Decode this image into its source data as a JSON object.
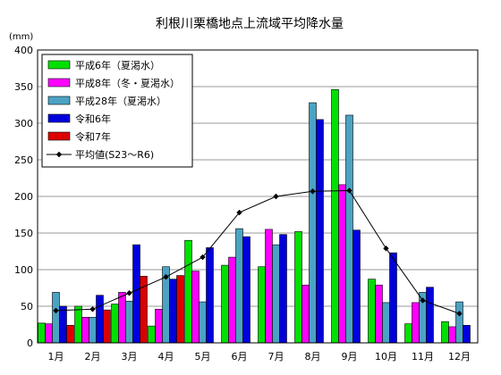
{
  "chart_data": {
    "type": "bar",
    "title": "利根川栗橋地点上流域平均降水量",
    "ylabel": "(mm)",
    "xlabel": "",
    "ylim": [
      0,
      400
    ],
    "yticks": [
      0,
      50,
      100,
      150,
      200,
      250,
      300,
      350,
      400
    ],
    "grid": true,
    "legend_position": "top-left",
    "categories": [
      "1月",
      "2月",
      "3月",
      "4月",
      "5月",
      "6月",
      "7月",
      "8月",
      "9月",
      "10月",
      "11月",
      "12月"
    ],
    "series": [
      {
        "name": "平成6年（夏渇水）",
        "type": "bar",
        "color": "#00e000",
        "values": [
          27,
          50,
          53,
          23,
          140,
          106,
          104,
          152,
          346,
          87,
          26,
          29
        ]
      },
      {
        "name": "平成8年（冬・夏渇水）",
        "type": "bar",
        "color": "#ff00ff",
        "values": [
          26,
          35,
          69,
          46,
          98,
          117,
          155,
          79,
          216,
          79,
          55,
          22
        ]
      },
      {
        "name": "平成28年（夏渇水）",
        "type": "bar",
        "color": "#4ba3c3",
        "values": [
          69,
          35,
          57,
          104,
          56,
          156,
          134,
          328,
          311,
          55,
          69,
          56
        ]
      },
      {
        "name": "令和6年",
        "type": "bar",
        "color": "#0000dd",
        "values": [
          50,
          65,
          134,
          87,
          130,
          145,
          148,
          305,
          154,
          123,
          76,
          24
        ]
      },
      {
        "name": "令和7年",
        "type": "bar",
        "color": "#dd0000",
        "values": [
          24,
          45,
          91,
          92,
          null,
          null,
          null,
          null,
          null,
          null,
          null,
          null
        ]
      },
      {
        "name": "平均値(S23～R6)",
        "type": "line",
        "color": "#000000",
        "values": [
          44,
          46,
          68,
          90,
          117,
          178,
          200,
          207,
          208,
          129,
          58,
          40
        ]
      }
    ]
  }
}
